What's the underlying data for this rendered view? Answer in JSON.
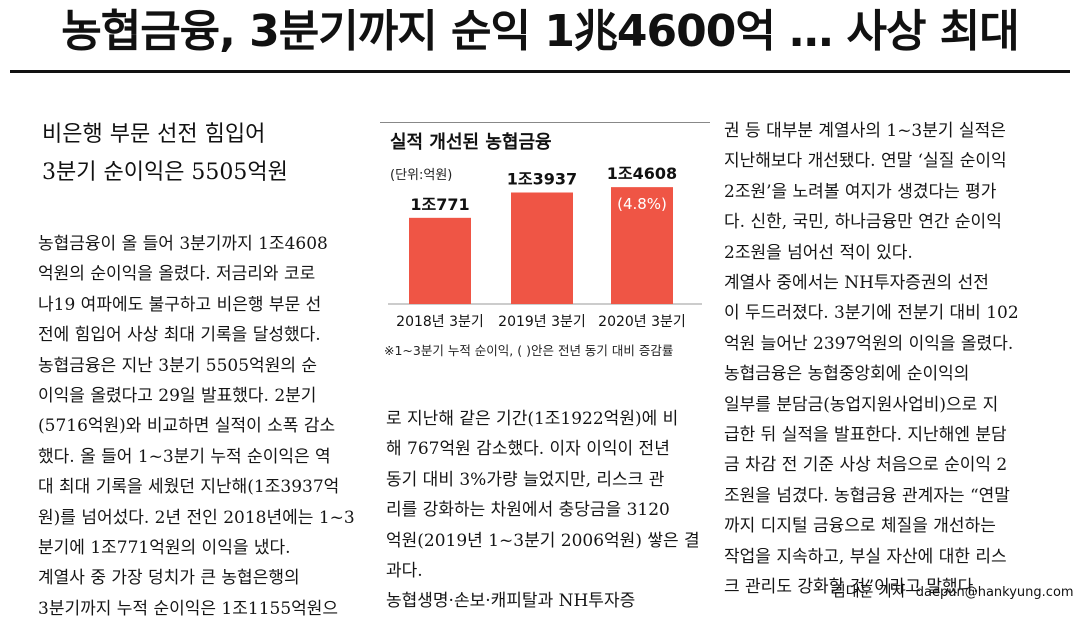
{
  "headline": "농협금융, 3분기까지 순익 1兆4600억 … 사상 최대",
  "subheadline": [
    "비은행 부문 선전 힘입어",
    "3분기 순이익은 5505억원"
  ],
  "column1": [
    "농협금융이 올 들어 3분기까지 1조4608",
    "억원의 순이익을 올렸다. 저금리와 코로",
    "나19 여파에도 불구하고 비은행 부문 선",
    "전에 힘입어 사상 최대 기록을 달성했다.",
    "  농협금융은 지난 3분기 5505억원의 순",
    "이익을 올렸다고 29일 발표했다. 2분기",
    "(5716억원)와 비교하면 실적이 소폭 감소",
    "했다. 올 들어 1~3분기 누적 순이익은 역",
    "대 최대 기록을 세웠던 지난해(1조3937억",
    "원)를 넘어섰다. 2년 전인 2018년에는 1~3",
    "분기에 1조771억원의 이익을 냈다.",
    "  계열사 중 가장 덩치가 큰 농협은행의",
    "3분기까지 누적 순이익은 1조1155억원으"
  ],
  "column2": [
    "로 지난해 같은 기간(1조1922억원)에 비",
    "해 767억원 감소했다. 이자 이익이 전년",
    "동기 대비 3%가량 늘었지만, 리스크 관",
    "리를 강화하는 차원에서 충당금을 3120",
    "억원(2019년 1~3분기 2006억원) 쌓은 결",
    "과다.",
    "  농협생명·손보·캐피탈과 NH투자증"
  ],
  "column3": [
    "권 등 대부분 계열사의 1~3분기 실적은",
    "지난해보다 개선됐다. 연말 ‘실질 순이익",
    "2조원’을 노려볼 여지가 생겼다는 평가",
    "다. 신한, 국민, 하나금융만 연간 순이익",
    "2조원을 넘어선 적이 있다.",
    "  계열사 중에서는 NH투자증권의 선전",
    "이 두드러졌다. 3분기에 전분기 대비 102",
    "억원 늘어난 2397억원의 이익을 올렸다.",
    "  농협금융은 농협중앙회에 순이익의",
    "일부를 분담금(농업지원사업비)으로 지",
    "급한 뒤 실적을 발표한다. 지난해엔 분담",
    "금 차감 전 기준 사상 처음으로 순이익 2",
    "조원을 넘겼다. 농협금융 관계자는 “연말",
    "까지 디지털 금융으로 체질을 개선하는",
    "작업을 지속하고, 부실 자산에 대한 리스",
    "크 관리도 강화할 것”이라고 말했다."
  ],
  "byline": {
    "reporter": "김대훈 기자",
    "email": "daepun@hankyung.com"
  },
  "chart_data": {
    "type": "bar",
    "title": "실적 개선된 농협금융",
    "unit_label": "(단위:억원)",
    "categories": [
      "2018년 3분기",
      "2019년 3분기",
      "2020년 3분기"
    ],
    "values": [
      10771,
      13937,
      14608
    ],
    "value_labels": [
      "1조771",
      "1조3937",
      "1조4608"
    ],
    "annotation": "(4.8%)",
    "note": "※1~3분기 누적 순이익, ( )안은 전년 동기 대비 증감률",
    "bar_color": "#ef5545",
    "ylim": [
      0,
      16000
    ]
  }
}
